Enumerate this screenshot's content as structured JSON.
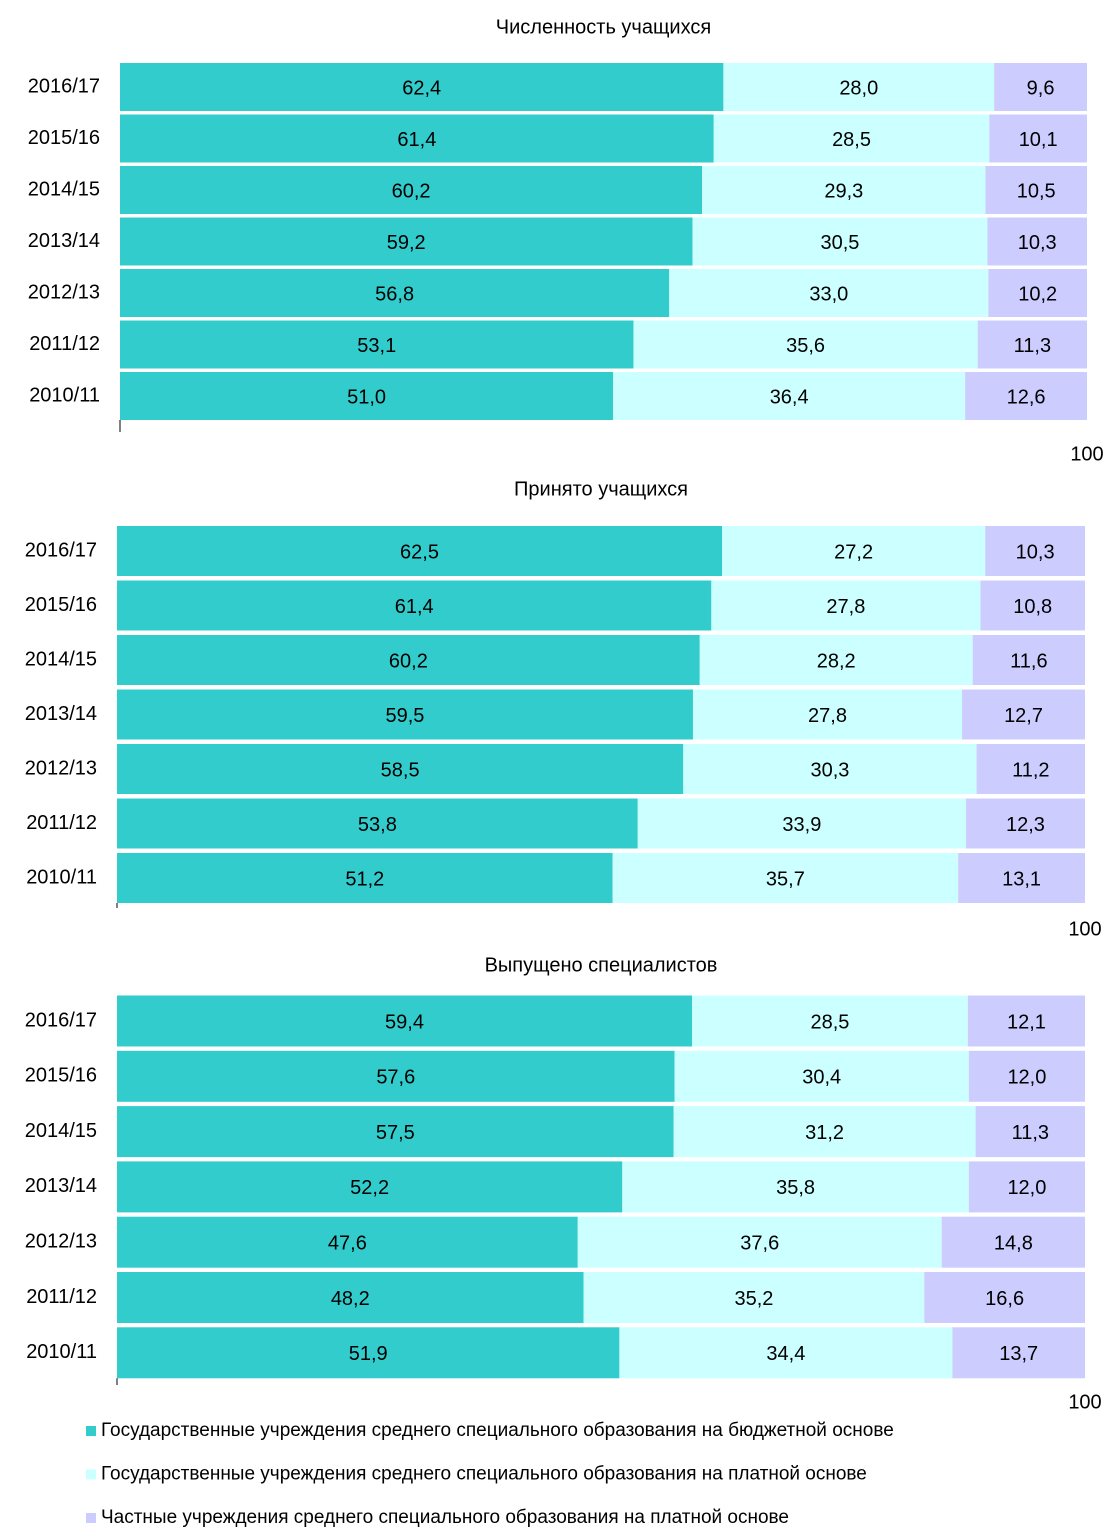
{
  "chart_data": [
    {
      "type": "stacked-bar-horizontal",
      "title": "Численность учащихся",
      "categories": [
        "2016/17",
        "2015/16",
        "2014/15",
        "2013/14",
        "2012/13",
        "2011/12",
        "2010/11"
      ],
      "xlim": [
        0,
        100
      ],
      "xticks": [
        100
      ],
      "series": [
        {
          "color": "#33cccc",
          "values": [
            62.4,
            61.4,
            60.2,
            59.2,
            56.8,
            53.1,
            51.0
          ],
          "value_labels": [
            "62,4",
            "61,4",
            "60,2",
            "59,2",
            "56,8",
            "53,1",
            "51,0"
          ]
        },
        {
          "color": "#ccffff",
          "values": [
            28.0,
            28.5,
            29.3,
            30.5,
            33.0,
            35.6,
            36.4
          ],
          "value_labels": [
            "28,0",
            "28,5",
            "29,3",
            "30,5",
            "33,0",
            "35,6",
            "36,4"
          ]
        },
        {
          "color": "#ccccff",
          "values": [
            9.6,
            10.1,
            10.5,
            10.3,
            10.2,
            11.3,
            12.6
          ],
          "value_labels": [
            "9,6",
            "10,1",
            "10,5",
            "10,3",
            "10,2",
            "11,3",
            "12,6"
          ]
        }
      ]
    },
    {
      "type": "stacked-bar-horizontal",
      "title": "Принято учащихся",
      "categories": [
        "2016/17",
        "2015/16",
        "2014/15",
        "2013/14",
        "2012/13",
        "2011/12",
        "2010/11"
      ],
      "xlim": [
        0,
        100
      ],
      "xticks": [
        100
      ],
      "series": [
        {
          "color": "#33cccc",
          "values": [
            62.5,
            61.4,
            60.2,
            59.5,
            58.5,
            53.8,
            51.2
          ],
          "value_labels": [
            "62,5",
            "61,4",
            "60,2",
            "59,5",
            "58,5",
            "53,8",
            "51,2"
          ]
        },
        {
          "color": "#ccffff",
          "values": [
            27.2,
            27.8,
            28.2,
            27.8,
            30.3,
            33.9,
            35.7
          ],
          "value_labels": [
            "27,2",
            "27,8",
            "28,2",
            "27,8",
            "30,3",
            "33,9",
            "35,7"
          ]
        },
        {
          "color": "#ccccff",
          "values": [
            10.3,
            10.8,
            11.6,
            12.7,
            11.2,
            12.3,
            13.1
          ],
          "value_labels": [
            "10,3",
            "10,8",
            "11,6",
            "12,7",
            "11,2",
            "12,3",
            "13,1"
          ]
        }
      ]
    },
    {
      "type": "stacked-bar-horizontal",
      "title": "Выпущено специалистов",
      "categories": [
        "2016/17",
        "2015/16",
        "2014/15",
        "2013/14",
        "2012/13",
        "2011/12",
        "2010/11"
      ],
      "xlim": [
        0,
        100
      ],
      "xticks": [
        100
      ],
      "series": [
        {
          "name": "Государственные учреждения среднего специального образования на бюджетной основе",
          "color": "#33cccc",
          "values": [
            59.4,
            57.6,
            57.5,
            52.2,
            47.6,
            48.2,
            51.9
          ],
          "value_labels": [
            "59,4",
            "57,6",
            "57,5",
            "52,2",
            "47,6",
            "48,2",
            "51,9"
          ]
        },
        {
          "name": "Государственные учреждения среднего специального образования на платной основе",
          "color": "#ccffff",
          "values": [
            28.5,
            30.4,
            31.2,
            35.8,
            37.6,
            35.2,
            34.4
          ],
          "value_labels": [
            "28,5",
            "30,4",
            "31,2",
            "35,8",
            "37,6",
            "35,2",
            "34,4"
          ]
        },
        {
          "name": "Частные учреждения среднего специального образования на платной основе",
          "color": "#ccccff",
          "values": [
            12.1,
            12.0,
            11.3,
            12.0,
            14.8,
            16.6,
            13.7
          ],
          "value_labels": [
            "12,1",
            "12,0",
            "11,3",
            "12,0",
            "14,8",
            "16,6",
            "13,7"
          ]
        }
      ]
    }
  ]
}
